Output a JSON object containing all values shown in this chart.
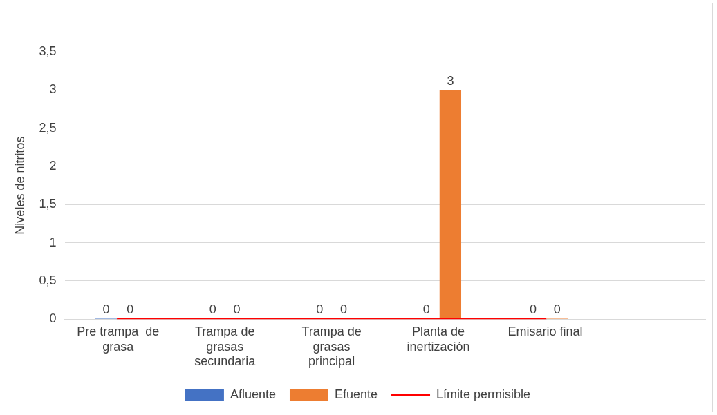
{
  "chart_data": {
    "type": "bar",
    "ylabel": "Niveles de nitritos",
    "categories": [
      "Pre trampa  de grasa",
      "Trampa de grasas secundaria",
      "Trampa de grasas principal",
      "Planta de inertización",
      "Emisario final",
      null
    ],
    "series": [
      {
        "name": "Afluente",
        "color": "#4472c4",
        "values": [
          0,
          0,
          0,
          0,
          0,
          null
        ],
        "value_labels": [
          "0",
          "0",
          "0",
          "0",
          "0",
          null
        ]
      },
      {
        "name": "Efuente",
        "color": "#ed7d31",
        "values": [
          0,
          0,
          0,
          3,
          0,
          null
        ],
        "value_labels": [
          "0",
          "0",
          "0",
          "3",
          "0",
          null
        ]
      },
      {
        "name": "Límite permisible",
        "type": "line",
        "color": "#ff0000",
        "values": [
          0,
          0,
          0,
          0,
          0,
          null
        ],
        "marker": "none",
        "line_style": "solid"
      }
    ],
    "ylim": [
      0,
      3.5
    ],
    "yticks": [
      0,
      {
        "value": 0.5,
        "label": "0,5"
      },
      1,
      {
        "value": 1.5,
        "label": "1,5"
      },
      2,
      {
        "value": 2.5,
        "label": "2,5"
      },
      3,
      {
        "value": 3.5,
        "label": "3,5"
      }
    ],
    "grid": "y",
    "legend": "bottom"
  }
}
